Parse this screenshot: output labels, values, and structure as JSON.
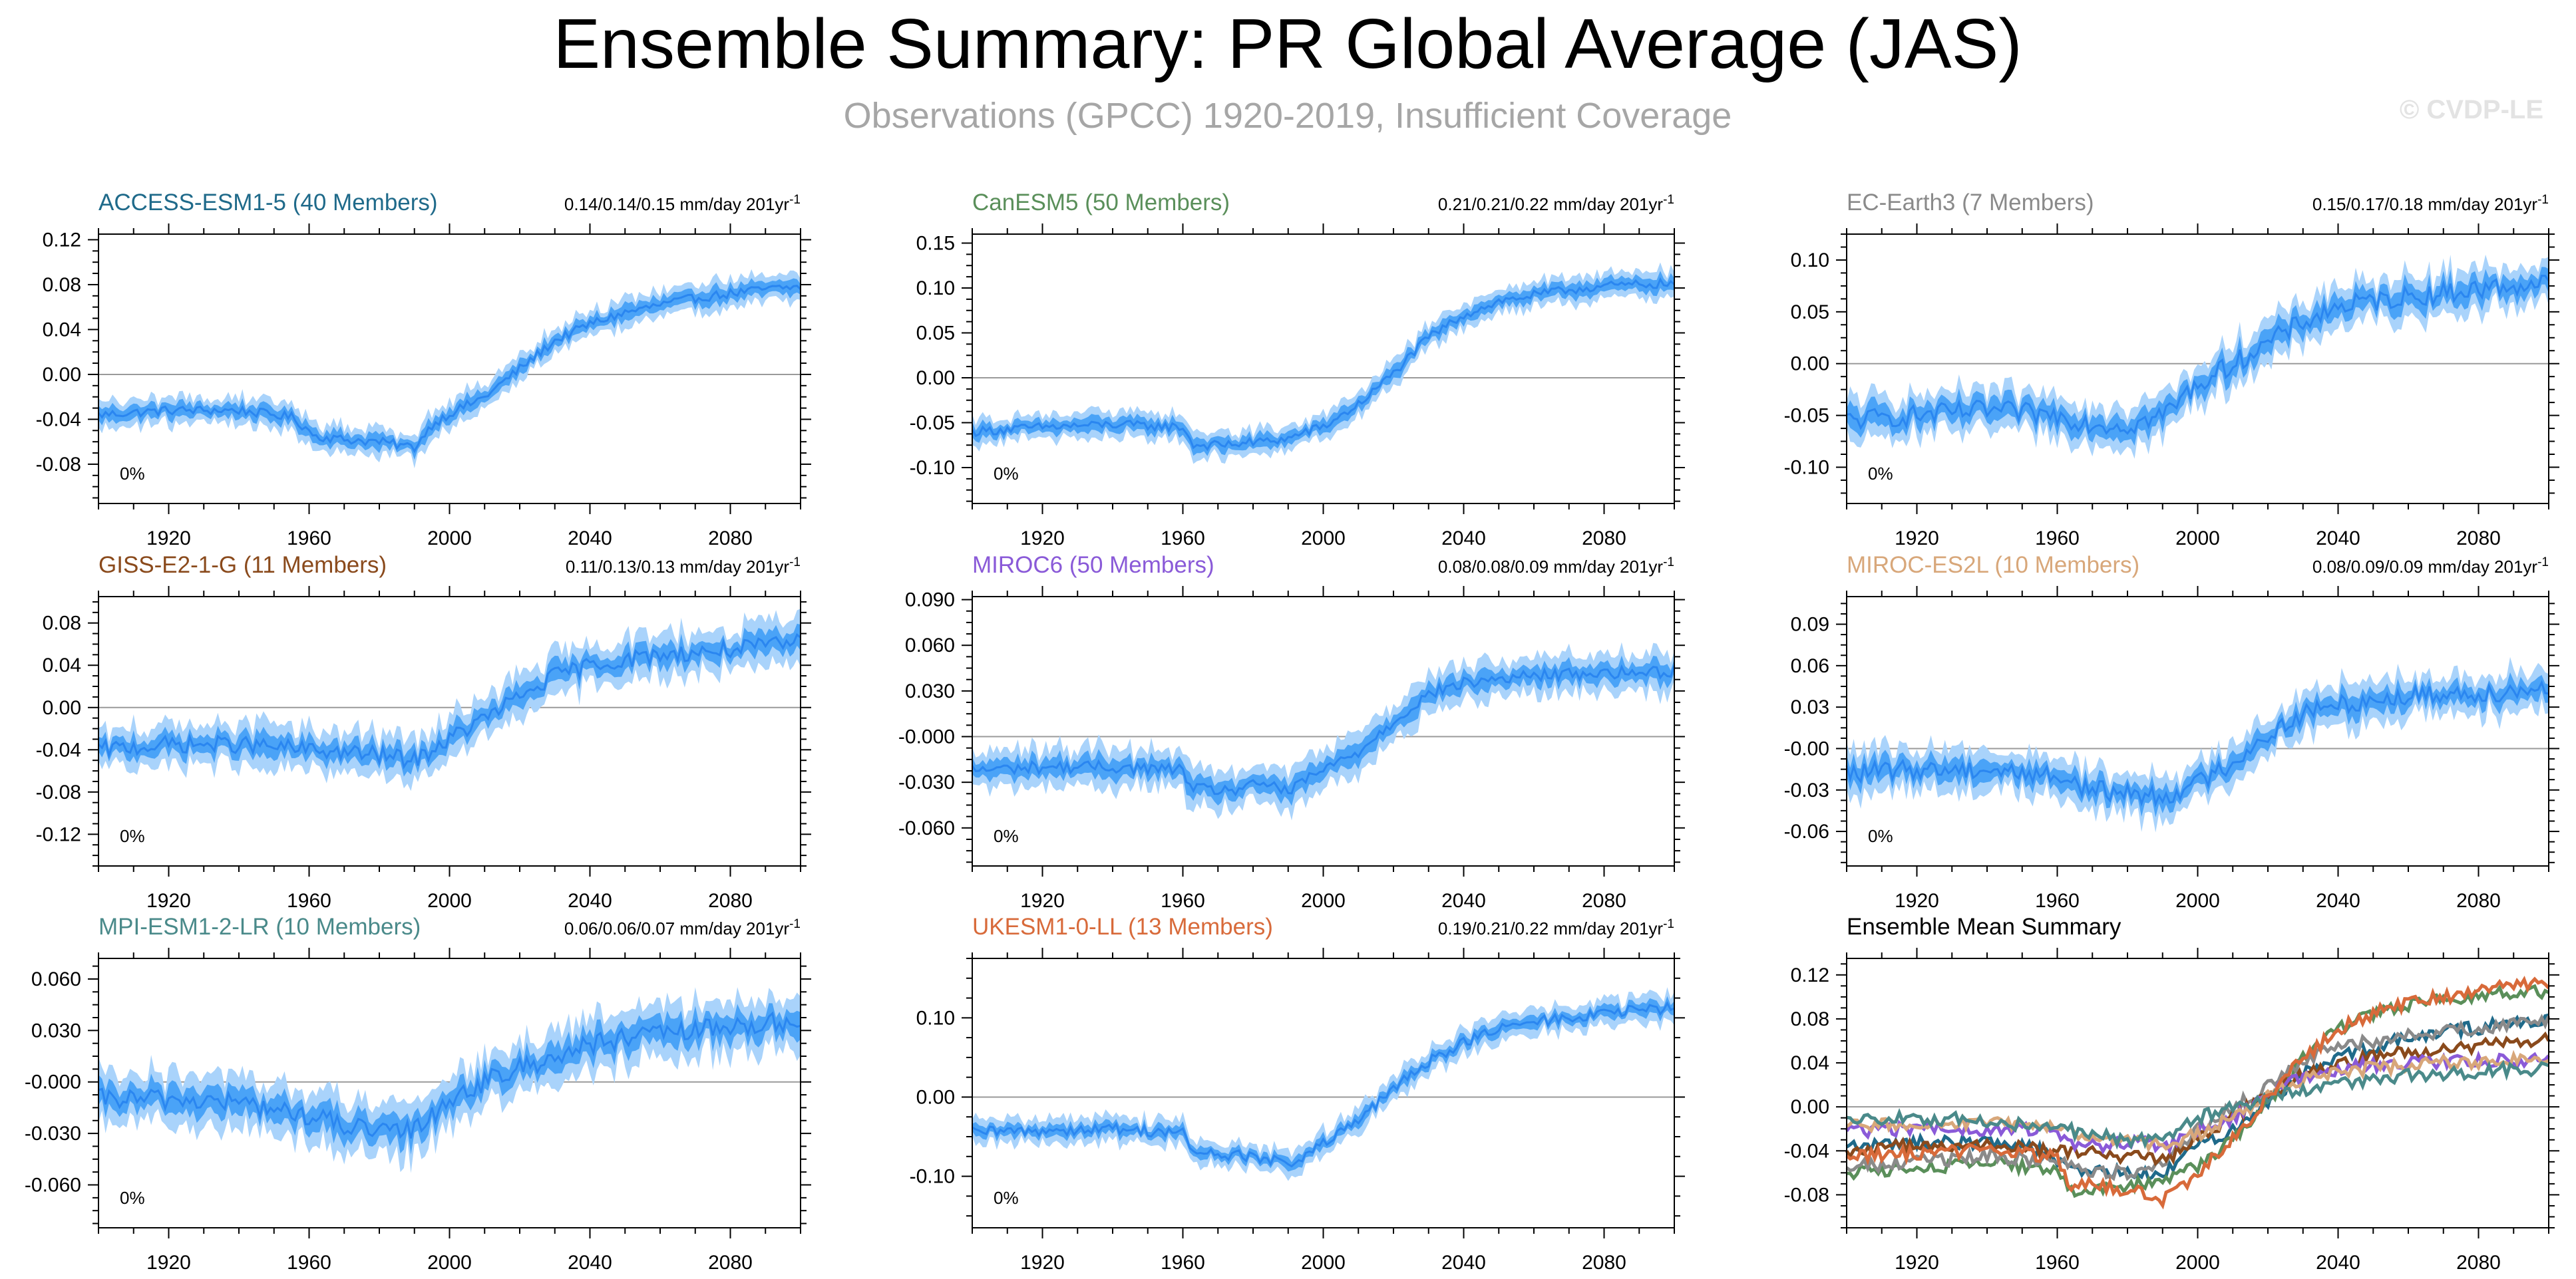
{
  "header": {
    "title": "Ensemble Summary: PR Global Average (JAS)",
    "subtitle": "Observations (GPCC) 1920-2019, Insufficient Coverage",
    "watermark": "© CVDP-LE"
  },
  "colors": {
    "mean_line": "#2a86f0",
    "inner_band": "#4aa3f7",
    "outer_band": "#a9d3fb"
  },
  "chart_data": [
    {
      "type": "area",
      "title": "ACCESS-ESM1-5 (40 Members)",
      "title_color": "#1f6a8a",
      "stat": "0.14/0.14/0.15 mm/day 201yr",
      "stat_sup": "-1",
      "percent_label": "0%",
      "xlim": [
        1900,
        2100
      ],
      "x_ticks": [
        1920,
        1960,
        2000,
        2040,
        2080
      ],
      "ylim": [
        -0.115,
        0.125
      ],
      "y_ticks": [
        0.12,
        0.08,
        0.04,
        0.0,
        -0.04,
        -0.08
      ],
      "y_tick_labels": [
        "0.12",
        "0.08",
        "0.04",
        "0.00",
        "-0.04",
        "-0.08"
      ],
      "series": [
        {
          "name": "ensemble mean",
          "x": [
            1900,
            1920,
            1940,
            1955,
            1962,
            1970,
            1980,
            1990,
            1995,
            2000,
            2010,
            2020,
            2030,
            2040,
            2050,
            2060,
            2070,
            2080,
            2090,
            2100
          ],
          "values": [
            -0.036,
            -0.032,
            -0.032,
            -0.038,
            -0.055,
            -0.058,
            -0.06,
            -0.065,
            -0.045,
            -0.035,
            -0.02,
            0.005,
            0.03,
            0.045,
            0.055,
            0.062,
            0.068,
            0.072,
            0.076,
            0.078
          ],
          "inner": 0.006,
          "outer": 0.012,
          "noise": 0.004
        }
      ]
    },
    {
      "type": "area",
      "title": "CanESM5 (50 Members)",
      "title_color": "#5a8f5a",
      "stat": "0.21/0.21/0.22 mm/day 201yr",
      "stat_sup": "-1",
      "percent_label": "0%",
      "xlim": [
        1900,
        2100
      ],
      "x_ticks": [
        1920,
        1960,
        2000,
        2040,
        2080
      ],
      "ylim": [
        -0.14,
        0.16
      ],
      "y_ticks": [
        0.15,
        0.1,
        0.05,
        0.0,
        -0.05,
        -0.1
      ],
      "y_tick_labels": [
        "0.15",
        "0.10",
        "0.05",
        "0.00",
        "-0.05",
        "-0.10"
      ],
      "series": [
        {
          "name": "ensemble mean",
          "x": [
            1900,
            1920,
            1940,
            1960,
            1963,
            1970,
            1980,
            1990,
            1995,
            2000,
            2010,
            2020,
            2030,
            2040,
            2050,
            2060,
            2070,
            2080,
            2090,
            2100
          ],
          "values": [
            -0.06,
            -0.055,
            -0.052,
            -0.055,
            -0.075,
            -0.075,
            -0.072,
            -0.068,
            -0.06,
            -0.055,
            -0.03,
            0.005,
            0.045,
            0.07,
            0.085,
            0.092,
            0.098,
            0.102,
            0.104,
            0.105
          ],
          "inner": 0.007,
          "outer": 0.014,
          "noise": 0.005
        }
      ]
    },
    {
      "type": "area",
      "title": "EC-Earth3 (7 Members)",
      "title_color": "#8a8a8a",
      "stat": "0.15/0.17/0.18 mm/day 201yr",
      "stat_sup": "-1",
      "percent_label": "0%",
      "xlim": [
        1900,
        2100
      ],
      "x_ticks": [
        1920,
        1960,
        2000,
        2040,
        2080
      ],
      "ylim": [
        -0.135,
        0.125
      ],
      "y_ticks": [
        0.1,
        0.05,
        0.0,
        -0.05,
        -0.1
      ],
      "y_tick_labels": [
        "0.10",
        "0.05",
        "0.00",
        "-0.05",
        "-0.10"
      ],
      "series": [
        {
          "name": "ensemble mean",
          "x": [
            1900,
            1920,
            1940,
            1960,
            1970,
            1980,
            1990,
            2000,
            2010,
            2020,
            2030,
            2040,
            2050,
            2060,
            2070,
            2080,
            2090,
            2100
          ],
          "values": [
            -0.055,
            -0.05,
            -0.045,
            -0.05,
            -0.058,
            -0.06,
            -0.05,
            -0.02,
            0.0,
            0.02,
            0.04,
            0.055,
            0.06,
            0.065,
            0.068,
            0.072,
            0.075,
            0.078
          ],
          "inner": 0.01,
          "outer": 0.02,
          "noise": 0.01
        }
      ]
    },
    {
      "type": "area",
      "title": "GISS-E2-1-G (11 Members)",
      "title_color": "#8a4a1c",
      "stat": "0.11/0.13/0.13 mm/day 201yr",
      "stat_sup": "-1",
      "percent_label": "0%",
      "xlim": [
        1900,
        2100
      ],
      "x_ticks": [
        1920,
        1960,
        2000,
        2040,
        2080
      ],
      "ylim": [
        -0.15,
        0.105
      ],
      "y_ticks": [
        0.08,
        0.04,
        0.0,
        -0.04,
        -0.08,
        -0.12
      ],
      "y_tick_labels": [
        "0.08",
        "0.04",
        "0.00",
        "-0.04",
        "-0.08",
        "-0.12"
      ],
      "series": [
        {
          "name": "ensemble mean",
          "x": [
            1900,
            1920,
            1940,
            1960,
            1980,
            1990,
            2000,
            2010,
            2020,
            2030,
            2040,
            2050,
            2060,
            2070,
            2080,
            2090,
            2100
          ],
          "values": [
            -0.04,
            -0.035,
            -0.035,
            -0.04,
            -0.045,
            -0.05,
            -0.03,
            -0.01,
            0.01,
            0.03,
            0.04,
            0.045,
            0.05,
            0.052,
            0.055,
            0.058,
            0.062
          ],
          "inner": 0.009,
          "outer": 0.02,
          "noise": 0.008
        }
      ]
    },
    {
      "type": "area",
      "title": "MIROC6 (50 Members)",
      "title_color": "#8a5ad8",
      "stat": "0.08/0.08/0.09 mm/day 201yr",
      "stat_sup": "-1",
      "percent_label": "0%",
      "xlim": [
        1900,
        2100
      ],
      "x_ticks": [
        1920,
        1960,
        2000,
        2040,
        2080
      ],
      "ylim": [
        -0.085,
        0.092
      ],
      "y_ticks": [
        0.09,
        0.06,
        0.03,
        0.0,
        -0.03,
        -0.06
      ],
      "y_tick_labels": [
        "0.090",
        "0.060",
        "0.030",
        "-0.000",
        "-0.030",
        "-0.060"
      ],
      "series": [
        {
          "name": "ensemble mean",
          "x": [
            1900,
            1920,
            1940,
            1960,
            1963,
            1975,
            1985,
            1990,
            1995,
            2000,
            2010,
            2020,
            2030,
            2040,
            2050,
            2060,
            2070,
            2080,
            2090,
            2100
          ],
          "values": [
            -0.022,
            -0.02,
            -0.02,
            -0.022,
            -0.035,
            -0.035,
            -0.03,
            -0.038,
            -0.028,
            -0.022,
            -0.01,
            0.01,
            0.028,
            0.035,
            0.038,
            0.04,
            0.041,
            0.042,
            0.042,
            0.043
          ],
          "inner": 0.006,
          "outer": 0.013,
          "noise": 0.004
        }
      ]
    },
    {
      "type": "area",
      "title": "MIROC-ES2L (10 Members)",
      "title_color": "#d8a77a",
      "stat": "0.08/0.09/0.09 mm/day 201yr",
      "stat_sup": "-1",
      "percent_label": "0%",
      "xlim": [
        1900,
        2100
      ],
      "x_ticks": [
        1920,
        1960,
        2000,
        2040,
        2080
      ],
      "ylim": [
        -0.085,
        0.11
      ],
      "y_ticks": [
        0.09,
        0.06,
        0.03,
        0.0,
        -0.03,
        -0.06
      ],
      "y_tick_labels": [
        "0.09",
        "0.06",
        "0.03",
        "-0.00",
        "-0.03",
        "-0.06"
      ],
      "series": [
        {
          "name": "ensemble mean",
          "x": [
            1900,
            1920,
            1940,
            1960,
            1970,
            1980,
            1990,
            2000,
            2010,
            2020,
            2030,
            2040,
            2050,
            2060,
            2070,
            2080,
            2090,
            2100
          ],
          "values": [
            -0.018,
            -0.015,
            -0.015,
            -0.02,
            -0.03,
            -0.032,
            -0.035,
            -0.025,
            -0.01,
            0.01,
            0.025,
            0.032,
            0.035,
            0.038,
            0.04,
            0.04,
            0.042,
            0.045
          ],
          "inner": 0.007,
          "outer": 0.015,
          "noise": 0.007
        }
      ]
    },
    {
      "type": "area",
      "title": "MPI-ESM1-2-LR (10 Members)",
      "title_color": "#4a8a8a",
      "stat": "0.06/0.06/0.07 mm/day 201yr",
      "stat_sup": "-1",
      "percent_label": "0%",
      "xlim": [
        1900,
        2100
      ],
      "x_ticks": [
        1920,
        1960,
        2000,
        2040,
        2080
      ],
      "ylim": [
        -0.085,
        0.072
      ],
      "y_ticks": [
        0.06,
        0.03,
        0.0,
        -0.03,
        -0.06
      ],
      "y_tick_labels": [
        "0.060",
        "0.030",
        "-0.000",
        "-0.030",
        "-0.060"
      ],
      "series": [
        {
          "name": "ensemble mean",
          "x": [
            1900,
            1920,
            1940,
            1960,
            1970,
            1980,
            1990,
            2000,
            2010,
            2020,
            2030,
            2040,
            2050,
            2060,
            2070,
            2080,
            2090,
            2100
          ],
          "values": [
            -0.01,
            -0.01,
            -0.012,
            -0.02,
            -0.025,
            -0.03,
            -0.028,
            -0.01,
            0.0,
            0.008,
            0.015,
            0.022,
            0.025,
            0.028,
            0.03,
            0.032,
            0.034,
            0.035
          ],
          "inner": 0.007,
          "outer": 0.015,
          "noise": 0.006
        }
      ]
    },
    {
      "type": "area",
      "title": "UKESM1-0-LL (13 Members)",
      "title_color": "#d86a3a",
      "stat": "0.19/0.21/0.22 mm/day 201yr",
      "stat_sup": "-1",
      "percent_label": "0%",
      "xlim": [
        1900,
        2100
      ],
      "x_ticks": [
        1920,
        1960,
        2000,
        2040,
        2080
      ],
      "ylim": [
        -0.165,
        0.175
      ],
      "y_ticks": [
        0.1,
        0.0,
        -0.1
      ],
      "y_tick_labels": [
        "0.10",
        "0.00",
        "-0.10"
      ],
      "series": [
        {
          "name": "ensemble mean",
          "x": [
            1900,
            1920,
            1940,
            1960,
            1963,
            1980,
            1990,
            2000,
            2010,
            2020,
            2030,
            2040,
            2050,
            2060,
            2070,
            2080,
            2090,
            2100
          ],
          "values": [
            -0.045,
            -0.042,
            -0.04,
            -0.045,
            -0.07,
            -0.075,
            -0.085,
            -0.06,
            -0.03,
            0.01,
            0.045,
            0.07,
            0.085,
            0.095,
            0.1,
            0.105,
            0.11,
            0.112
          ],
          "inner": 0.007,
          "outer": 0.016,
          "noise": 0.007
        }
      ]
    },
    {
      "type": "line",
      "title": "Ensemble Mean Summary",
      "title_color": "#000000",
      "xlim": [
        1900,
        2100
      ],
      "x_ticks": [
        1920,
        1960,
        2000,
        2040,
        2080
      ],
      "ylim": [
        -0.11,
        0.135
      ],
      "y_ticks": [
        0.12,
        0.08,
        0.04,
        0.0,
        -0.04,
        -0.08
      ],
      "y_tick_labels": [
        "0.12",
        "0.08",
        "0.04",
        "0.00",
        "-0.04",
        "-0.08"
      ],
      "series": [
        {
          "name": "ACCESS-ESM1-5",
          "color": "#1f6a8a",
          "x": [
            1900,
            1920,
            1940,
            1955,
            1962,
            1970,
            1980,
            1990,
            1995,
            2000,
            2010,
            2020,
            2030,
            2040,
            2050,
            2060,
            2070,
            2080,
            2090,
            2100
          ],
          "values": [
            -0.036,
            -0.032,
            -0.032,
            -0.038,
            -0.055,
            -0.058,
            -0.06,
            -0.065,
            -0.045,
            -0.035,
            -0.02,
            0.005,
            0.03,
            0.045,
            0.055,
            0.062,
            0.068,
            0.072,
            0.076,
            0.078
          ]
        },
        {
          "name": "CanESM5",
          "color": "#5a8f5a",
          "x": [
            1900,
            1920,
            1940,
            1960,
            1963,
            1970,
            1980,
            1990,
            1995,
            2000,
            2010,
            2020,
            2030,
            2040,
            2050,
            2060,
            2070,
            2080,
            2090,
            2100
          ],
          "values": [
            -0.06,
            -0.055,
            -0.052,
            -0.055,
            -0.075,
            -0.075,
            -0.072,
            -0.068,
            -0.06,
            -0.055,
            -0.03,
            0.005,
            0.045,
            0.07,
            0.085,
            0.092,
            0.098,
            0.102,
            0.104,
            0.105
          ]
        },
        {
          "name": "EC-Earth3",
          "color": "#8a8a8a",
          "x": [
            1900,
            1920,
            1940,
            1960,
            1970,
            1980,
            1990,
            2000,
            2010,
            2020,
            2030,
            2040,
            2050,
            2060,
            2070,
            2080,
            2090,
            2100
          ],
          "values": [
            -0.055,
            -0.05,
            -0.045,
            -0.05,
            -0.058,
            -0.06,
            -0.05,
            -0.02,
            0.0,
            0.02,
            0.04,
            0.055,
            0.06,
            0.065,
            0.068,
            0.072,
            0.075,
            0.078
          ]
        },
        {
          "name": "GISS-E2-1-G",
          "color": "#8a4a1c",
          "x": [
            1900,
            1920,
            1940,
            1960,
            1980,
            1990,
            2000,
            2010,
            2020,
            2030,
            2040,
            2050,
            2060,
            2070,
            2080,
            2090,
            2100
          ],
          "values": [
            -0.04,
            -0.035,
            -0.035,
            -0.04,
            -0.045,
            -0.05,
            -0.03,
            -0.01,
            0.01,
            0.03,
            0.04,
            0.045,
            0.05,
            0.052,
            0.055,
            0.058,
            0.062
          ]
        },
        {
          "name": "MIROC6",
          "color": "#8a5ad8",
          "x": [
            1900,
            1920,
            1940,
            1960,
            1963,
            1975,
            1985,
            1990,
            1995,
            2000,
            2010,
            2020,
            2030,
            2040,
            2050,
            2060,
            2070,
            2080,
            2090,
            2100
          ],
          "values": [
            -0.022,
            -0.02,
            -0.02,
            -0.022,
            -0.035,
            -0.035,
            -0.03,
            -0.038,
            -0.028,
            -0.022,
            -0.01,
            0.01,
            0.028,
            0.035,
            0.038,
            0.04,
            0.041,
            0.042,
            0.042,
            0.043
          ]
        },
        {
          "name": "MIROC-ES2L",
          "color": "#d8a77a",
          "x": [
            1900,
            1920,
            1940,
            1960,
            1970,
            1980,
            1990,
            2000,
            2010,
            2020,
            2030,
            2040,
            2050,
            2060,
            2070,
            2080,
            2090,
            2100
          ],
          "values": [
            -0.018,
            -0.015,
            -0.015,
            -0.02,
            -0.03,
            -0.032,
            -0.035,
            -0.025,
            -0.01,
            0.01,
            0.025,
            0.032,
            0.035,
            0.038,
            0.04,
            0.04,
            0.042,
            0.045
          ]
        },
        {
          "name": "MPI-ESM1-2-LR",
          "color": "#4a8a8a",
          "x": [
            1900,
            1920,
            1940,
            1960,
            1970,
            1980,
            1990,
            2000,
            2010,
            2020,
            2030,
            2040,
            2050,
            2060,
            2070,
            2080,
            2090,
            2100
          ],
          "values": [
            -0.01,
            -0.01,
            -0.012,
            -0.02,
            -0.025,
            -0.03,
            -0.028,
            -0.01,
            0.0,
            0.008,
            0.015,
            0.022,
            0.025,
            0.028,
            0.03,
            0.032,
            0.034,
            0.035
          ]
        },
        {
          "name": "UKESM1-0-LL",
          "color": "#d86a3a",
          "x": [
            1900,
            1920,
            1940,
            1960,
            1963,
            1980,
            1990,
            2000,
            2010,
            2020,
            2030,
            2040,
            2050,
            2060,
            2070,
            2080,
            2090,
            2100
          ],
          "values": [
            -0.045,
            -0.042,
            -0.04,
            -0.045,
            -0.07,
            -0.075,
            -0.085,
            -0.06,
            -0.03,
            0.01,
            0.045,
            0.07,
            0.085,
            0.095,
            0.1,
            0.105,
            0.11,
            0.112
          ]
        }
      ]
    }
  ]
}
